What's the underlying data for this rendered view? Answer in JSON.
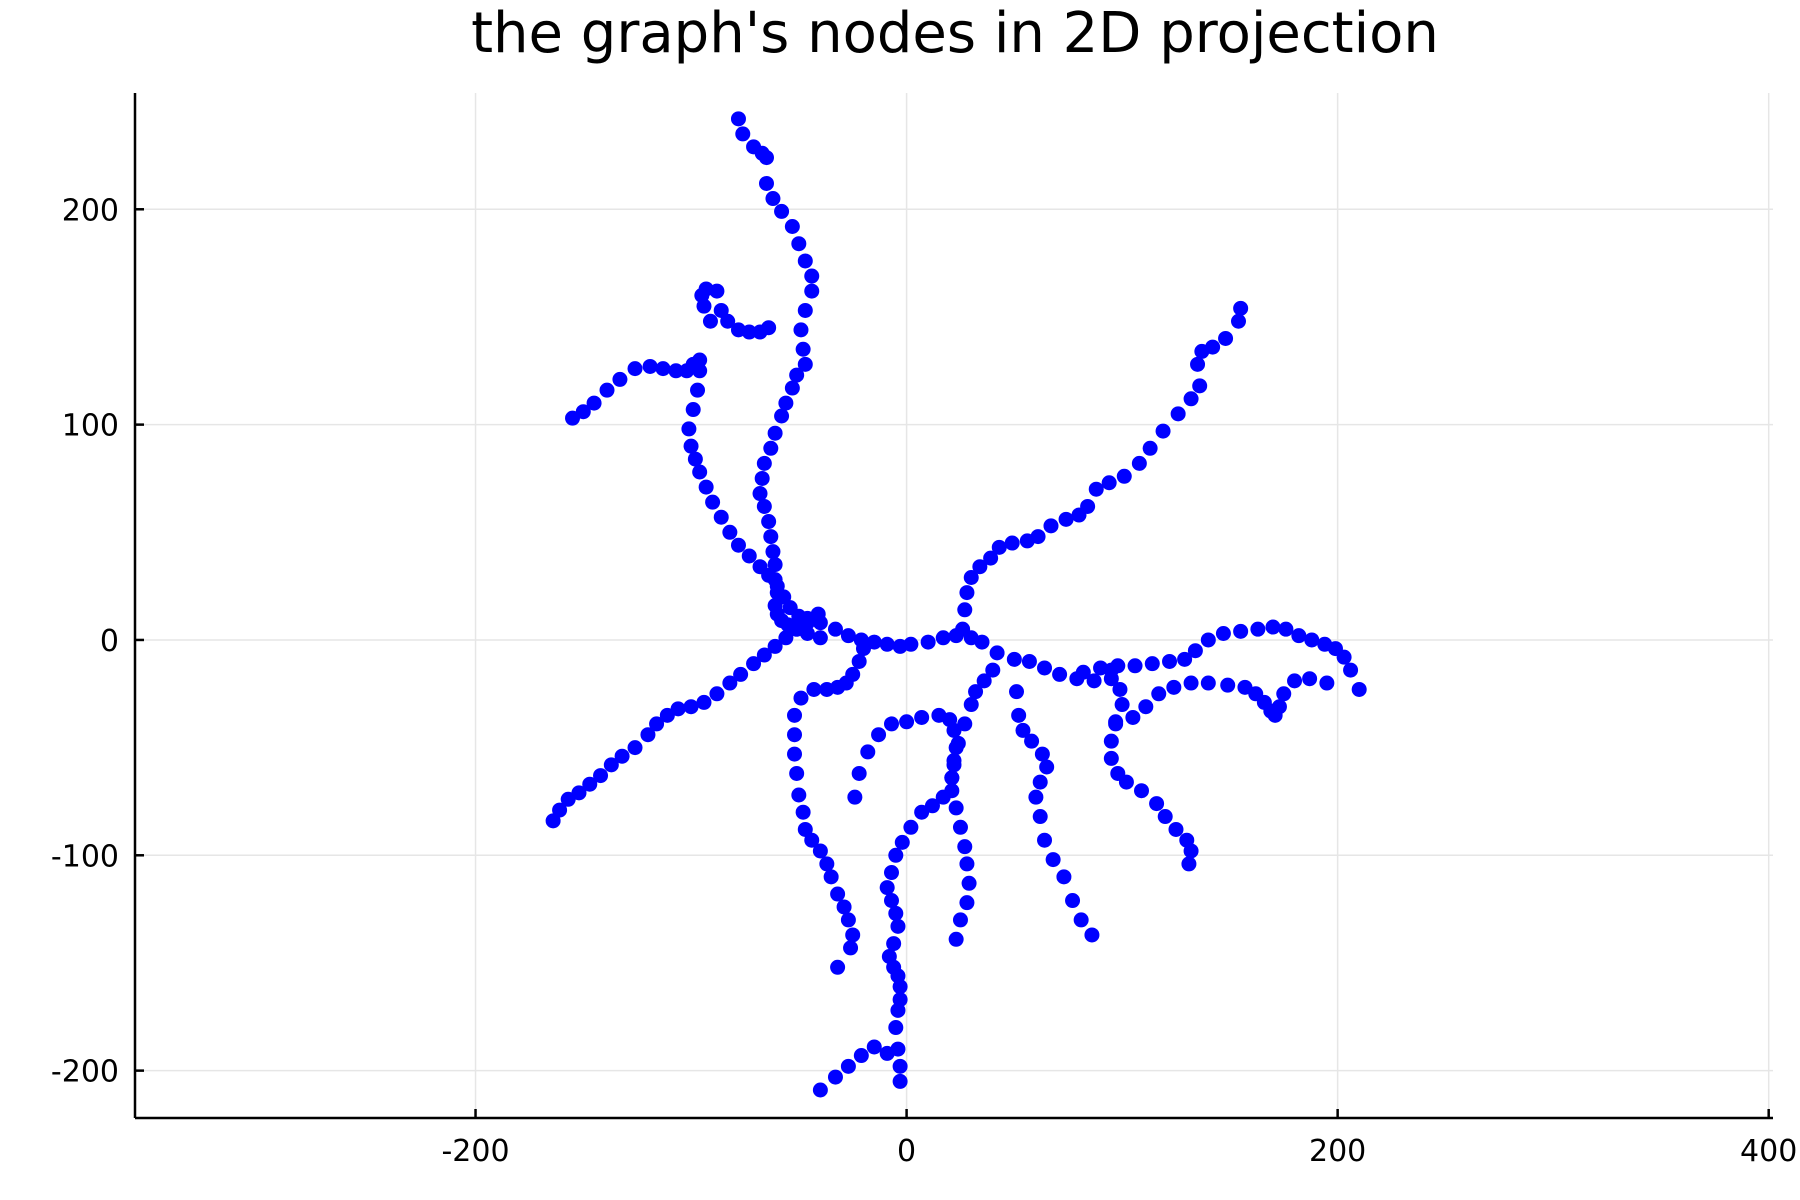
{
  "chart_data": {
    "type": "scatter",
    "title": "the graph's nodes in 2D projection",
    "xlabel": "",
    "ylabel": "",
    "xlim": [
      -358,
      402
    ],
    "ylim": [
      -222,
      254
    ],
    "xticks": [
      -200,
      0,
      200,
      400
    ],
    "yticks": [
      -200,
      -100,
      0,
      100,
      200
    ],
    "xtick_labels": [
      "-200",
      "0",
      "200",
      "400"
    ],
    "ytick_labels": [
      "-200",
      "-100",
      "0",
      "100",
      "200"
    ],
    "grid": true,
    "legend": "none",
    "marker_color": "#0000ff",
    "series": [
      {
        "branches": [
          {
            "x": [
              -78,
              -76,
              -71,
              -67,
              -65,
              -65,
              -62,
              -58,
              -53,
              -50,
              -47,
              -44,
              -44,
              -47,
              -49,
              -48,
              -47,
              -51,
              -53,
              -56,
              -58,
              -61,
              -63,
              -66,
              -67,
              -68,
              -66,
              -64,
              -63,
              -62,
              -61,
              -61,
              -60,
              -61,
              -60,
              -58,
              -55,
              -51,
              -46,
              -40
            ],
            "y": [
              242,
              235,
              229,
              226,
              224,
              212,
              205,
              199,
              192,
              184,
              176,
              169,
              162,
              153,
              144,
              135,
              128,
              123,
              117,
              110,
              104,
              96,
              89,
              82,
              75,
              68,
              62,
              55,
              48,
              41,
              35,
              28,
              22,
              16,
              12,
              9,
              7,
              5,
              3,
              1
            ]
          },
          {
            "x": [
              -155,
              -150,
              -145,
              -139,
              -133,
              -126,
              -119,
              -113,
              -107,
              -102,
              -99,
              -96,
              -96,
              -97,
              -99,
              -101,
              -100,
              -98,
              -96,
              -93,
              -90,
              -86,
              -82,
              -78,
              -73,
              -68,
              -64,
              -60,
              -57,
              -54,
              -50,
              -46
            ],
            "y": [
              103,
              106,
              110,
              116,
              121,
              126,
              127,
              126,
              125,
              125,
              128,
              130,
              125,
              116,
              107,
              98,
              90,
              84,
              78,
              71,
              64,
              57,
              50,
              44,
              39,
              34,
              30,
              25,
              20,
              15,
              11,
              8
            ]
          },
          {
            "x": [
              -91,
              -94,
              -95,
              -93,
              -88,
              -86,
              -83,
              -78,
              -73,
              -68,
              -64
            ],
            "y": [
              148,
              155,
              160,
              163,
              162,
              153,
              148,
              144,
              143,
              143,
              145
            ]
          },
          {
            "x": [
              -164,
              -161,
              -157,
              -152,
              -147,
              -142,
              -137,
              -132,
              -126,
              -120,
              -116,
              -111,
              -106,
              -100,
              -94,
              -88,
              -82,
              -77,
              -71,
              -66,
              -61,
              -56,
              -51,
              -46,
              -41
            ],
            "y": [
              -84,
              -79,
              -74,
              -71,
              -67,
              -63,
              -58,
              -54,
              -50,
              -44,
              -39,
              -35,
              -32,
              -31,
              -29,
              -25,
              -20,
              -16,
              -11,
              -7,
              -3,
              1,
              5,
              9,
              12
            ]
          },
          {
            "x": [
              -46,
              -40,
              -33,
              -27,
              -21,
              -15,
              -9,
              -3,
              2,
              10,
              17,
              23,
              30,
              35,
              42,
              50,
              57,
              64,
              71,
              79,
              87,
              95
            ],
            "y": [
              10,
              8,
              5,
              2,
              0,
              -1,
              -2,
              -3,
              -2,
              -1,
              1,
              2,
              1,
              -1,
              -6,
              -9,
              -10,
              -13,
              -16,
              -18,
              -19,
              -14
            ]
          },
          {
            "x": [
              26,
              27,
              28,
              30,
              34,
              39,
              43,
              49,
              56,
              61,
              67,
              74,
              80,
              84,
              88,
              94,
              101,
              108,
              113,
              119,
              126,
              132,
              136,
              135,
              137,
              142,
              148,
              154,
              155
            ],
            "y": [
              5,
              14,
              22,
              29,
              34,
              38,
              43,
              45,
              46,
              48,
              53,
              56,
              58,
              62,
              70,
              73,
              76,
              82,
              89,
              97,
              105,
              112,
              118,
              128,
              134,
              136,
              140,
              148,
              154
            ]
          },
          {
            "x": [
              82,
              90,
              98,
              106,
              114,
              122,
              129,
              134,
              140,
              147,
              155,
              163,
              170,
              176,
              182,
              188,
              194,
              199,
              203,
              206,
              210
            ],
            "y": [
              -15,
              -13,
              -12,
              -12,
              -11,
              -10,
              -9,
              -5,
              0,
              3,
              4,
              5,
              6,
              5,
              2,
              0,
              -2,
              -4,
              -8,
              -14,
              -23
            ]
          },
          {
            "x": [
              95,
              99,
              100,
              97,
              95,
              95,
              98,
              102,
              109,
              116,
              120,
              125,
              130,
              132,
              131
            ],
            "y": [
              -18,
              -23,
              -30,
              -38,
              -47,
              -55,
              -62,
              -66,
              -70,
              -76,
              -82,
              -88,
              -93,
              -98,
              -104
            ]
          },
          {
            "x": [
              97,
              105,
              111,
              117,
              124,
              132,
              140,
              149,
              157,
              162,
              166,
              169,
              171,
              173,
              175,
              180,
              187,
              195
            ],
            "y": [
              -39,
              -36,
              -31,
              -25,
              -22,
              -20,
              -20,
              -21,
              -22,
              -25,
              -29,
              -33,
              -35,
              -31,
              -25,
              -19,
              -18,
              -20
            ]
          },
          {
            "x": [
              -20,
              -22,
              -25,
              -28,
              -32,
              -37,
              -43,
              -49,
              -52,
              -52,
              -52,
              -51,
              -50,
              -48,
              -47,
              -44,
              -40,
              -37,
              -35,
              -32,
              -29,
              -27,
              -25,
              -26,
              -32
            ],
            "y": [
              -4,
              -10,
              -16,
              -20,
              -22,
              -23,
              -23,
              -27,
              -35,
              -44,
              -53,
              -62,
              -72,
              -80,
              -88,
              -93,
              -98,
              -104,
              -110,
              -118,
              -124,
              -130,
              -137,
              -143,
              -152
            ]
          },
          {
            "x": [
              -24,
              -22,
              -18,
              -13,
              -7,
              0,
              7,
              15,
              20,
              22,
              23,
              22,
              21
            ],
            "y": [
              -73,
              -62,
              -52,
              -44,
              -39,
              -38,
              -36,
              -35,
              -37,
              -42,
              -50,
              -58,
              -64
            ]
          },
          {
            "x": [
              40,
              36,
              32,
              30,
              27,
              24,
              22,
              21,
              21,
              23,
              25,
              27,
              28,
              29,
              28,
              25,
              23
            ],
            "y": [
              -14,
              -19,
              -24,
              -30,
              -39,
              -48,
              -56,
              -64,
              -70,
              -78,
              -87,
              -96,
              -104,
              -113,
              -122,
              -130,
              -139
            ]
          },
          {
            "x": [
              17,
              12,
              7,
              2,
              -2,
              -5,
              -7,
              -9,
              -7,
              -5,
              -4,
              -6,
              -8,
              -6,
              -4,
              -3,
              -3,
              -4,
              -5,
              -4,
              -3
            ],
            "y": [
              -73,
              -77,
              -80,
              -87,
              -94,
              -100,
              -108,
              -115,
              -121,
              -127,
              -133,
              -141,
              -147,
              -152,
              -156,
              -161,
              -167,
              -172,
              -180,
              -190,
              -198
            ]
          },
          {
            "x": [
              -3,
              -9,
              -15,
              -21,
              -27,
              -33,
              -40
            ],
            "y": [
              -205,
              -192,
              -189,
              -193,
              -198,
              -203,
              -209
            ]
          },
          {
            "x": [
              51,
              52,
              54,
              58,
              63,
              65,
              62,
              60,
              62,
              64,
              68,
              73,
              77,
              81,
              86
            ],
            "y": [
              -24,
              -35,
              -42,
              -47,
              -53,
              -59,
              -66,
              -73,
              -82,
              -93,
              -102,
              -110,
              -121,
              -130,
              -137
            ]
          }
        ]
      }
    ]
  }
}
